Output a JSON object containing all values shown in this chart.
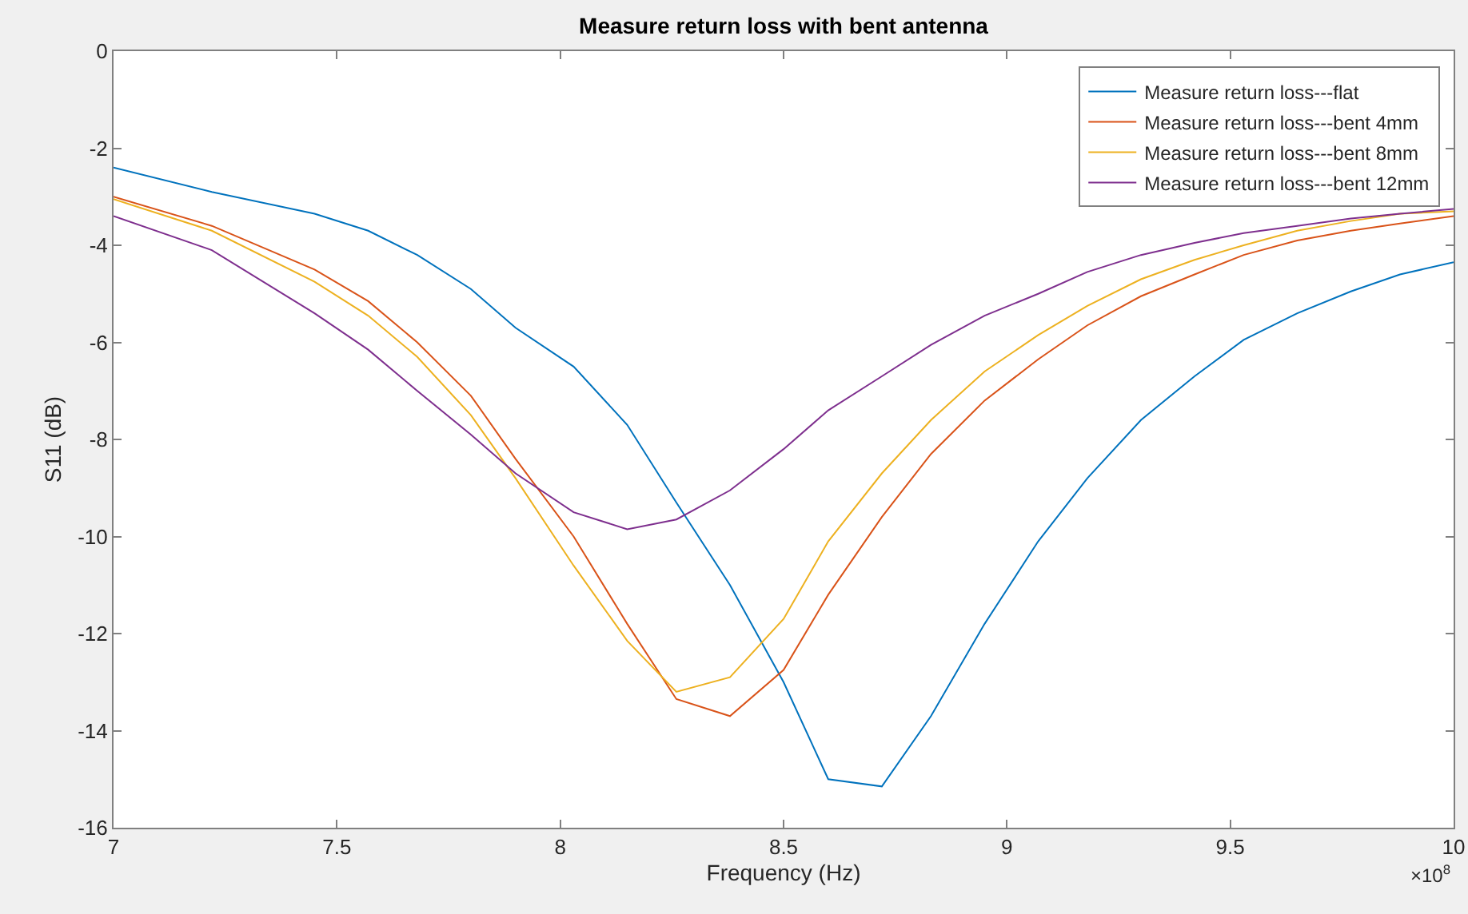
{
  "chart_data": {
    "type": "line",
    "title": "Measure return loss with bent antenna",
    "xlabel": "Frequency (Hz)",
    "ylabel": "S11 (dB)",
    "x": [
      7.0,
      7.22,
      7.45,
      7.57,
      7.68,
      7.8,
      7.9,
      8.03,
      8.15,
      8.26,
      8.38,
      8.5,
      8.6,
      8.72,
      8.83,
      8.95,
      9.07,
      9.18,
      9.3,
      9.42,
      9.53,
      9.65,
      9.77,
      9.88,
      10.0
    ],
    "series": [
      {
        "name": "Measure return loss---flat",
        "color": "#0072bd",
        "values": [
          -2.4,
          -2.9,
          -3.35,
          -3.7,
          -4.2,
          -4.9,
          -5.7,
          -6.5,
          -7.7,
          -9.3,
          -11.0,
          -13.0,
          -15.0,
          -15.15,
          -13.7,
          -11.8,
          -10.1,
          -8.8,
          -7.6,
          -6.7,
          -5.95,
          -5.4,
          -4.95,
          -4.6,
          -4.35
        ]
      },
      {
        "name": "Measure return loss---bent 4mm",
        "color": "#d95319",
        "values": [
          -3.0,
          -3.6,
          -4.5,
          -5.15,
          -6.0,
          -7.1,
          -8.4,
          -10.0,
          -11.8,
          -13.35,
          -13.7,
          -12.75,
          -11.2,
          -9.6,
          -8.3,
          -7.2,
          -6.35,
          -5.65,
          -5.05,
          -4.6,
          -4.2,
          -3.9,
          -3.7,
          -3.55,
          -3.4
        ]
      },
      {
        "name": "Measure return loss---bent 8mm",
        "color": "#edb120",
        "values": [
          -3.05,
          -3.7,
          -4.75,
          -5.45,
          -6.3,
          -7.5,
          -8.8,
          -10.6,
          -12.15,
          -13.2,
          -12.9,
          -11.7,
          -10.1,
          -8.7,
          -7.6,
          -6.6,
          -5.85,
          -5.25,
          -4.7,
          -4.3,
          -4.0,
          -3.7,
          -3.5,
          -3.35,
          -3.3
        ]
      },
      {
        "name": "Measure return loss---bent 12mm",
        "color": "#7e2f8e",
        "values": [
          -3.4,
          -4.1,
          -5.4,
          -6.15,
          -7.0,
          -7.9,
          -8.7,
          -9.5,
          -9.85,
          -9.65,
          -9.05,
          -8.2,
          -7.4,
          -6.7,
          -6.05,
          -5.45,
          -5.0,
          -4.55,
          -4.2,
          -3.95,
          -3.75,
          -3.6,
          -3.45,
          -3.35,
          -3.25
        ]
      }
    ],
    "xlim": [
      7,
      10
    ],
    "xticks": [
      7,
      7.5,
      8,
      8.5,
      9,
      9.5,
      10
    ],
    "ylim": [
      -16,
      0
    ],
    "yticks": [
      -16,
      -14,
      -12,
      -10,
      -8,
      -6,
      -4,
      -2,
      0
    ],
    "annotations": [
      "×10$^{8}$"
    ],
    "grid": false,
    "legend": "top right",
    "marker": "none",
    "line_style": "solid"
  }
}
